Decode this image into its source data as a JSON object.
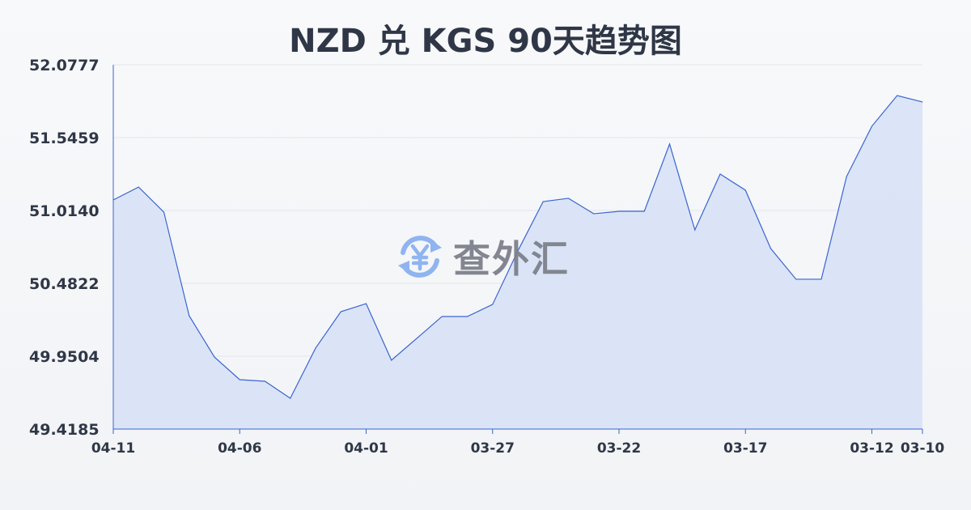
{
  "chart_data": {
    "type": "area",
    "title": "NZD 兑 KGS 90天趋势图",
    "xlabel": "",
    "ylabel": "",
    "x": [
      "04-11",
      "04-10",
      "04-09",
      "04-08",
      "04-07",
      "04-06",
      "04-05",
      "04-04",
      "04-03",
      "04-02",
      "04-01",
      "03-31",
      "03-30",
      "03-29",
      "03-28",
      "03-27",
      "03-26",
      "03-25",
      "03-24",
      "03-23",
      "03-22",
      "03-21",
      "03-20",
      "03-19",
      "03-18",
      "03-17",
      "03-16",
      "03-15",
      "03-14",
      "03-13",
      "03-12",
      "03-11",
      "03-10"
    ],
    "x_tick_labels": [
      "04-11",
      "04-06",
      "04-01",
      "03-27",
      "03-22",
      "03-17",
      "03-12",
      "03-10"
    ],
    "values": [
      51.091,
      51.185,
      51.002,
      50.246,
      49.944,
      49.779,
      49.767,
      49.643,
      50.009,
      50.275,
      50.334,
      49.921,
      50.08,
      50.24,
      50.24,
      50.328,
      50.719,
      51.079,
      51.103,
      50.99,
      51.008,
      51.008,
      51.499,
      50.872,
      51.28,
      51.162,
      50.736,
      50.512,
      50.512,
      51.262,
      51.629,
      51.853,
      51.806
    ],
    "y_tick_labels": [
      "52.0777",
      "51.5459",
      "51.0140",
      "50.4822",
      "49.9504",
      "49.4185"
    ],
    "ylim": [
      49.4185,
      52.0777
    ],
    "grid": true,
    "colors": {
      "line": "#3a64d0",
      "fill": "#d8e2f6",
      "grid": "#e3e6eb",
      "text": "#2f3747"
    }
  },
  "watermark": {
    "text": "查外汇",
    "icon": "yen-exchange-icon",
    "color": "#8fb4f0"
  }
}
